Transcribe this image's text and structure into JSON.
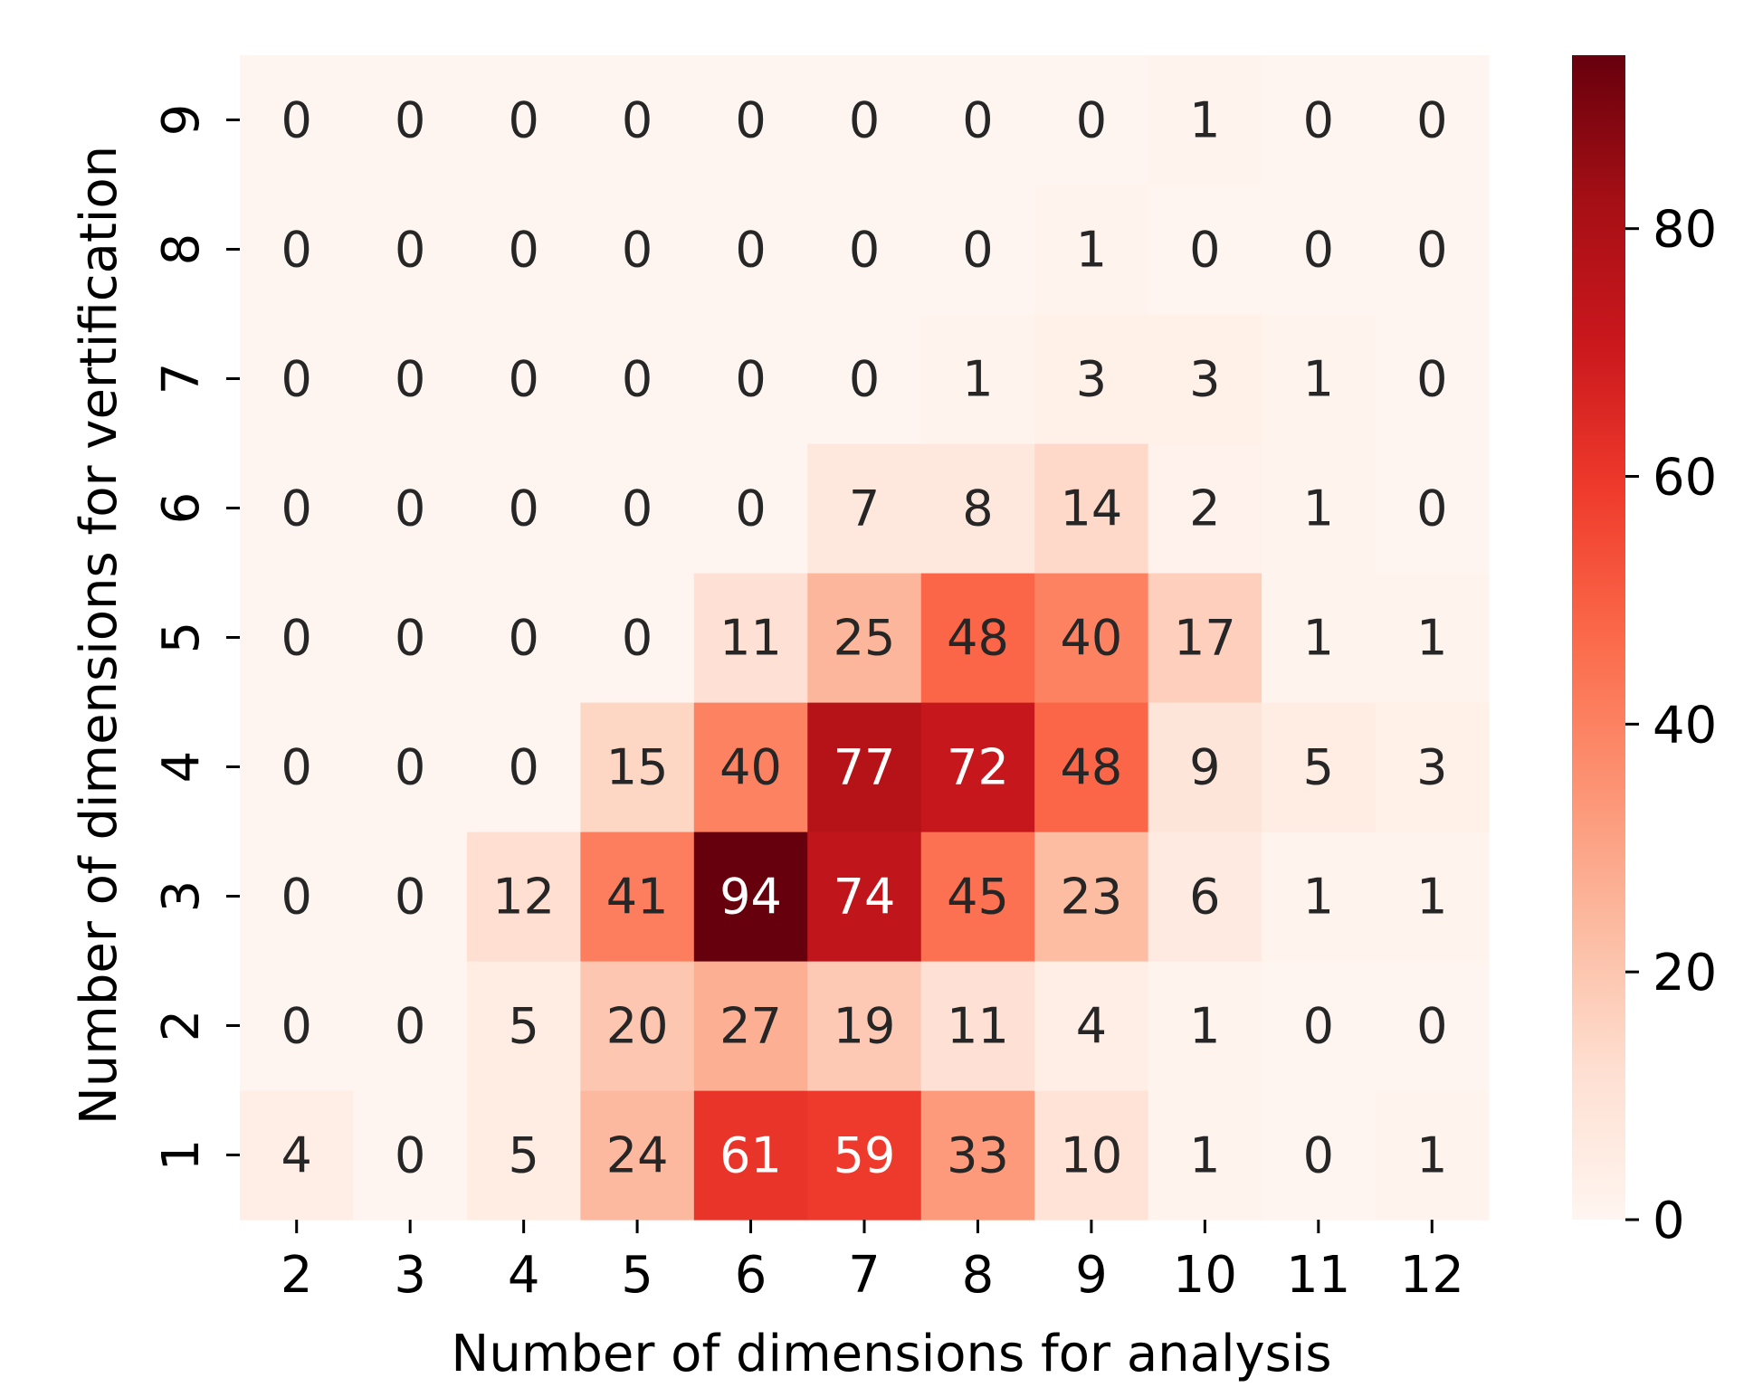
{
  "chart_data": {
    "type": "heatmap",
    "title": "",
    "xlabel": "Number of dimensions for analysis",
    "ylabel": "Number of dimensions for vertification",
    "x_categories": [
      "2",
      "3",
      "4",
      "5",
      "6",
      "7",
      "8",
      "9",
      "10",
      "11",
      "12"
    ],
    "y_categories": [
      "1",
      "2",
      "3",
      "4",
      "5",
      "6",
      "7",
      "8",
      "9"
    ],
    "values": [
      [
        4,
        0,
        5,
        24,
        61,
        59,
        33,
        10,
        1,
        0,
        1
      ],
      [
        0,
        0,
        5,
        20,
        27,
        19,
        11,
        4,
        1,
        0,
        0
      ],
      [
        0,
        0,
        12,
        41,
        94,
        74,
        45,
        23,
        6,
        1,
        1
      ],
      [
        0,
        0,
        0,
        15,
        40,
        77,
        72,
        48,
        9,
        5,
        3
      ],
      [
        0,
        0,
        0,
        0,
        11,
        25,
        48,
        40,
        17,
        1,
        1
      ],
      [
        0,
        0,
        0,
        0,
        0,
        7,
        8,
        14,
        2,
        1,
        0
      ],
      [
        0,
        0,
        0,
        0,
        0,
        0,
        1,
        3,
        3,
        1,
        0
      ],
      [
        0,
        0,
        0,
        0,
        0,
        0,
        0,
        1,
        0,
        0,
        0
      ],
      [
        0,
        0,
        0,
        0,
        0,
        0,
        0,
        0,
        1,
        0,
        0
      ]
    ],
    "colormap": "Reds",
    "vmin": 0,
    "vmax": 94,
    "colorbar": {
      "ticks": [
        "0",
        "20",
        "40",
        "60",
        "80"
      ],
      "tick_values": [
        0,
        20,
        40,
        60,
        80
      ]
    },
    "annotated": true,
    "grid": false
  }
}
